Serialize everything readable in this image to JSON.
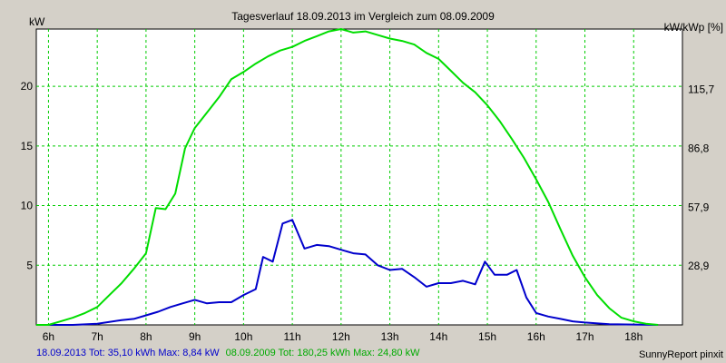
{
  "chart_data": {
    "type": "line",
    "title": "Tagesverlauf 18.09.2013 im Vergleich zum 08.09.2009",
    "ylabel_left": "kW",
    "ylabel_right": "kW/kWp [%]",
    "xlim": [
      5.75,
      19.0
    ],
    "ylim": [
      0,
      24.8
    ],
    "x_ticks": [
      6,
      7,
      8,
      9,
      10,
      11,
      12,
      13,
      14,
      15,
      16,
      17,
      18
    ],
    "x_tick_labels": [
      "6h",
      "7h",
      "8h",
      "9h",
      "10h",
      "11h",
      "12h",
      "13h",
      "14h",
      "15h",
      "16h",
      "17h",
      "18h"
    ],
    "y_ticks_left": [
      5,
      10,
      15,
      20
    ],
    "y_tick_labels_left": [
      "5",
      "10",
      "15",
      "20"
    ],
    "y_ticks_right_at": [
      4.93,
      9.87,
      14.8,
      19.73
    ],
    "y_tick_labels_right": [
      "28,9",
      "57,9",
      "86,8",
      "115,7"
    ],
    "grid": true,
    "series": [
      {
        "name": "18.09.2013",
        "color": "#0000cc",
        "points": [
          [
            5.75,
            0
          ],
          [
            6.5,
            0
          ],
          [
            7.0,
            0.1
          ],
          [
            7.5,
            0.4
          ],
          [
            7.75,
            0.5
          ],
          [
            8.0,
            0.8
          ],
          [
            8.25,
            1.1
          ],
          [
            8.5,
            1.5
          ],
          [
            8.75,
            1.8
          ],
          [
            9.0,
            2.1
          ],
          [
            9.25,
            1.8
          ],
          [
            9.5,
            1.9
          ],
          [
            9.75,
            1.9
          ],
          [
            10.0,
            2.5
          ],
          [
            10.25,
            3.0
          ],
          [
            10.4,
            5.7
          ],
          [
            10.6,
            5.3
          ],
          [
            10.8,
            8.5
          ],
          [
            11.0,
            8.8
          ],
          [
            11.25,
            6.4
          ],
          [
            11.5,
            6.7
          ],
          [
            11.75,
            6.6
          ],
          [
            12.0,
            6.3
          ],
          [
            12.25,
            6.0
          ],
          [
            12.5,
            5.9
          ],
          [
            12.75,
            5.0
          ],
          [
            13.0,
            4.6
          ],
          [
            13.25,
            4.7
          ],
          [
            13.5,
            4.0
          ],
          [
            13.75,
            3.2
          ],
          [
            14.0,
            3.5
          ],
          [
            14.25,
            3.5
          ],
          [
            14.5,
            3.7
          ],
          [
            14.75,
            3.4
          ],
          [
            14.95,
            5.3
          ],
          [
            15.15,
            4.2
          ],
          [
            15.4,
            4.2
          ],
          [
            15.6,
            4.6
          ],
          [
            15.8,
            2.3
          ],
          [
            16.0,
            1.0
          ],
          [
            16.25,
            0.7
          ],
          [
            16.5,
            0.5
          ],
          [
            16.75,
            0.3
          ],
          [
            17.0,
            0.2
          ],
          [
            17.5,
            0.05
          ],
          [
            18.5,
            0
          ]
        ]
      },
      {
        "name": "08.09.2009",
        "color": "#00dd00",
        "points": [
          [
            5.75,
            0
          ],
          [
            6.0,
            0
          ],
          [
            6.25,
            0.3
          ],
          [
            6.5,
            0.6
          ],
          [
            6.75,
            1.0
          ],
          [
            7.0,
            1.5
          ],
          [
            7.25,
            2.5
          ],
          [
            7.5,
            3.5
          ],
          [
            7.75,
            4.7
          ],
          [
            8.0,
            6.0
          ],
          [
            8.2,
            9.8
          ],
          [
            8.4,
            9.7
          ],
          [
            8.6,
            11.0
          ],
          [
            8.8,
            14.8
          ],
          [
            9.0,
            16.5
          ],
          [
            9.25,
            17.8
          ],
          [
            9.5,
            19.1
          ],
          [
            9.75,
            20.6
          ],
          [
            10.0,
            21.2
          ],
          [
            10.25,
            21.9
          ],
          [
            10.5,
            22.5
          ],
          [
            10.75,
            23.0
          ],
          [
            11.0,
            23.3
          ],
          [
            11.25,
            23.8
          ],
          [
            11.5,
            24.2
          ],
          [
            11.75,
            24.6
          ],
          [
            12.0,
            24.8
          ],
          [
            12.25,
            24.5
          ],
          [
            12.5,
            24.6
          ],
          [
            12.75,
            24.3
          ],
          [
            13.0,
            24.0
          ],
          [
            13.25,
            23.8
          ],
          [
            13.5,
            23.5
          ],
          [
            13.75,
            22.8
          ],
          [
            14.0,
            22.3
          ],
          [
            14.25,
            21.3
          ],
          [
            14.5,
            20.3
          ],
          [
            14.75,
            19.5
          ],
          [
            15.0,
            18.4
          ],
          [
            15.25,
            17.1
          ],
          [
            15.5,
            15.6
          ],
          [
            15.75,
            14.0
          ],
          [
            16.0,
            12.2
          ],
          [
            16.25,
            10.3
          ],
          [
            16.5,
            8.0
          ],
          [
            16.75,
            5.8
          ],
          [
            17.0,
            4.0
          ],
          [
            17.25,
            2.5
          ],
          [
            17.5,
            1.4
          ],
          [
            17.75,
            0.6
          ],
          [
            18.0,
            0.3
          ],
          [
            18.25,
            0.1
          ],
          [
            18.5,
            0
          ]
        ]
      }
    ]
  },
  "footer": {
    "series1_summary": "18.09.2013 Tot: 35,10 kWh Max: 8,84 kW",
    "series2_summary": "08.09.2009 Tot: 180,25 kWh Max: 24,80 kW",
    "credit": "SunnyReport pinxit"
  },
  "colors": {
    "background": "#d4d0c8",
    "plot_background": "#ffffff",
    "grid": "#00cc00"
  }
}
